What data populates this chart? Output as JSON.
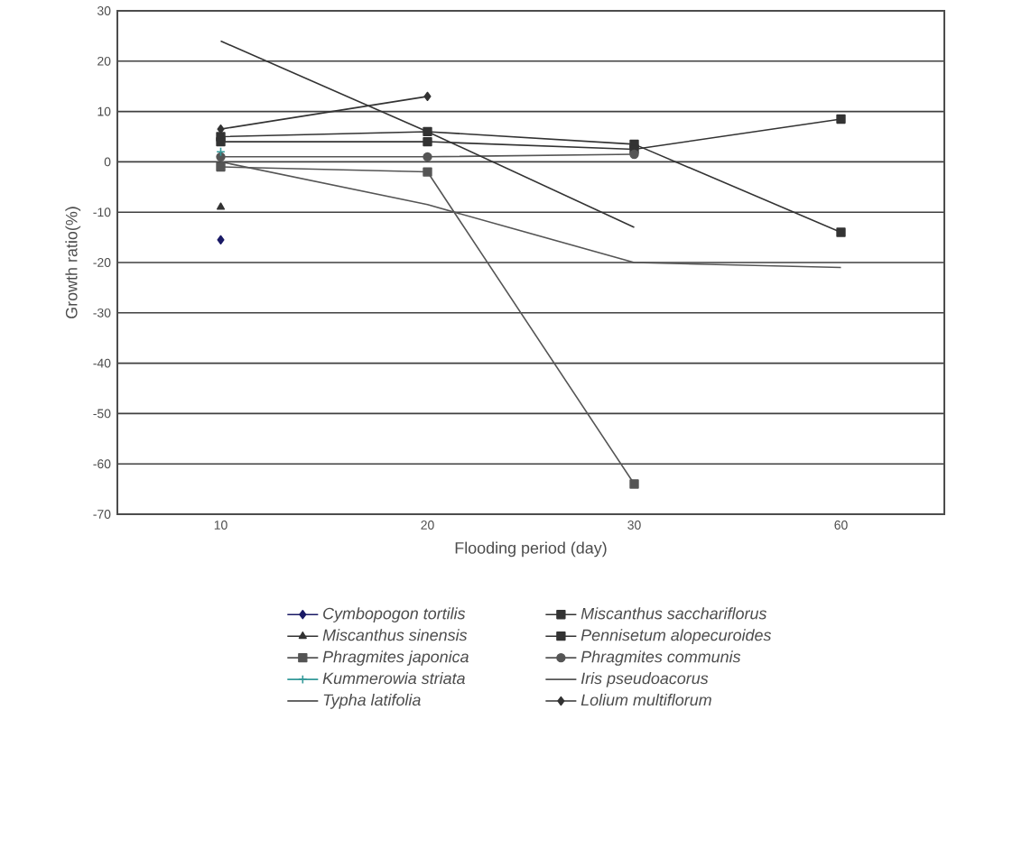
{
  "chart_data": {
    "type": "line",
    "xlabel": "Flooding period (day)",
    "ylabel": "Growth ratio(%)",
    "categories": [
      "10",
      "20",
      "30",
      "60"
    ],
    "ylim": [
      -70,
      30
    ],
    "yticks": [
      -70,
      -60,
      -50,
      -40,
      -30,
      -20,
      -10,
      0,
      10,
      20,
      30
    ],
    "grid": "y",
    "legend": "bottom",
    "series": [
      {
        "name": "Cymbopogon tortilis",
        "color": "#1a1a66",
        "marker": "diamond",
        "values": [
          -15.5,
          null,
          null,
          null
        ]
      },
      {
        "name": "Miscanthus sacchariflorus",
        "color": "#333333",
        "marker": "square",
        "values": [
          5,
          6,
          3.5,
          -14
        ]
      },
      {
        "name": "Miscanthus sinensis",
        "color": "#333333",
        "marker": "triangle",
        "values": [
          -9,
          null,
          null,
          null
        ]
      },
      {
        "name": "Pennisetum alopecuroides",
        "color": "#333333",
        "marker": "square",
        "values": [
          4,
          4,
          2.5,
          8.5
        ]
      },
      {
        "name": "Phragmites japonica",
        "color": "#555555",
        "marker": "square",
        "values": [
          -1,
          -2,
          -64,
          null
        ]
      },
      {
        "name": "Phragmites communis",
        "color": "#555555",
        "marker": "circle",
        "values": [
          1,
          1,
          1.5,
          null
        ]
      },
      {
        "name": "Kummerowia striata",
        "color": "#339999",
        "marker": "cross",
        "values": [
          2,
          null,
          null,
          null
        ]
      },
      {
        "name": "Iris pseudoacorus",
        "color": "#555555",
        "marker": "none",
        "values": [
          0,
          -8.5,
          -20,
          -21
        ]
      },
      {
        "name": "Typha latifolia",
        "color": "#333333",
        "marker": "none",
        "values": [
          24,
          6,
          -13,
          null
        ]
      },
      {
        "name": "Lolium multiflorum",
        "color": "#333333",
        "marker": "diamond",
        "values": [
          6.5,
          13,
          null,
          null
        ]
      }
    ]
  }
}
